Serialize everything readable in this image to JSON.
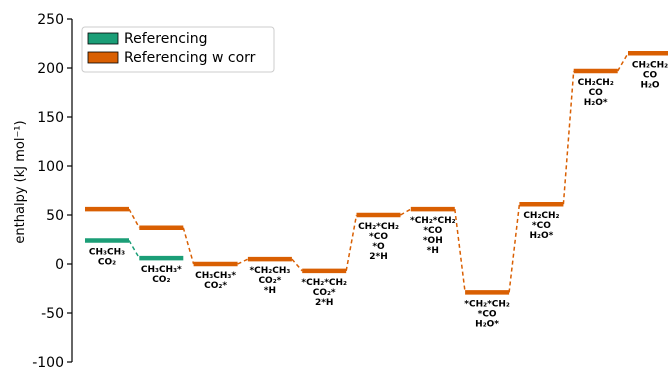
{
  "chart_data": {
    "type": "line",
    "ylabel": "enthalpy (kJ mol⁻¹)",
    "ylim": [
      -100,
      250
    ],
    "yticks": [
      -100,
      -50,
      0,
      50,
      100,
      150,
      200,
      250
    ],
    "legend": {
      "placement": "top-left"
    },
    "states": [
      {
        "lines": [
          "CH₃CH₃",
          "CO₂"
        ]
      },
      {
        "lines": [
          "CH₃CH₃*",
          "CO₂"
        ]
      },
      {
        "lines": [
          "CH₃CH₃*",
          "CO₂*"
        ]
      },
      {
        "lines": [
          "*CH₂CH₃",
          "CO₂*",
          "*H"
        ]
      },
      {
        "lines": [
          "*CH₂*CH₂",
          "CO₂*",
          "2*H"
        ]
      },
      {
        "lines": [
          "CH₂*CH₂",
          "*CO",
          "*O",
          "2*H"
        ]
      },
      {
        "lines": [
          "*CH₂*CH₂",
          "*CO",
          "*OH",
          "*H"
        ]
      },
      {
        "lines": [
          "*CH₂*CH₂",
          "*CO",
          "H₂O*"
        ]
      },
      {
        "lines": [
          "CH₂CH₂",
          "*CO",
          "H₂O*"
        ]
      },
      {
        "lines": [
          "CH₂CH₂",
          "CO",
          "H₂O*"
        ]
      },
      {
        "lines": [
          "CH₂CH₂",
          "CO",
          "H₂O"
        ]
      }
    ],
    "series": [
      {
        "name": "Referencing",
        "color": "#1b9e77",
        "values": [
          24,
          6,
          null,
          null,
          null,
          null,
          null,
          null,
          null,
          null,
          null
        ]
      },
      {
        "name": "Referencing w corr",
        "color": "#d95f02",
        "values": [
          56,
          37,
          0,
          5,
          -7,
          50,
          56,
          -29,
          61,
          197,
          215
        ]
      }
    ]
  }
}
